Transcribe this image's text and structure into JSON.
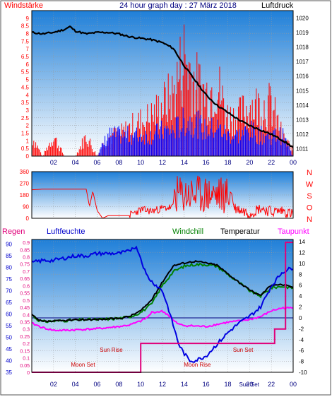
{
  "header": {
    "left_label": "Windstärke",
    "title": "24 hour graph day : 27 März 2018",
    "right_label": "Luftdruck"
  },
  "lower_header": {
    "regen": "Regen",
    "luftfeuchte": "Luftfeuchte",
    "windchill": "Windchill",
    "temperatur": "Temperatur",
    "taupunkt": "Taupunkt"
  },
  "colors": {
    "plot_top": "#1f7fd8",
    "plot_bottom": "#ffffff",
    "wind_red": "#ff0000",
    "wind_blue": "#0000ff",
    "pressure": "#000000",
    "humidity": "#0000e0",
    "temperature": "#000000",
    "windchill": "#008000",
    "dewpoint": "#ff00ff",
    "rain": "#e0007a",
    "grid": "#9a9a9a"
  },
  "chart_data": [
    {
      "type": "line",
      "name": "wind_and_pressure",
      "x_ticks": [
        "02",
        "04",
        "06",
        "08",
        "10",
        "12",
        "14",
        "16",
        "18",
        "20",
        "22",
        "00"
      ],
      "xlim": [
        0,
        24
      ],
      "y_left_ticks": [
        "0",
        "0.5",
        "1",
        "1.5",
        "2",
        "2.5",
        "3",
        "3.5",
        "4",
        "4.5",
        "5",
        "5.5",
        "6",
        "6.5",
        "7",
        "7.5",
        "8",
        "8.5",
        "9"
      ],
      "ylim_left": [
        0,
        9.5
      ],
      "y_right_ticks": [
        "1011",
        "1012",
        "1013",
        "1014",
        "1015",
        "1016",
        "1017",
        "1018",
        "1019",
        "1020"
      ],
      "ylim_right": [
        1010.5,
        1020.5
      ],
      "series": [
        {
          "name": "Luftdruck",
          "axis": "right",
          "x": [
            0,
            1,
            2,
            3,
            3.5,
            4,
            5,
            6,
            7,
            8,
            9,
            10,
            11,
            12,
            13,
            14,
            15,
            16,
            17,
            18,
            19,
            20,
            21,
            22,
            23,
            24
          ],
          "values": [
            1019.0,
            1018.9,
            1019.0,
            1019.2,
            1019.4,
            1019.1,
            1018.9,
            1019.0,
            1019.0,
            1018.9,
            1018.7,
            1018.6,
            1018.5,
            1018.3,
            1017.9,
            1016.7,
            1015.7,
            1014.7,
            1014.0,
            1013.5,
            1013.0,
            1012.6,
            1012.3,
            1012.0,
            1011.6,
            1011.1
          ]
        },
        {
          "name": "Böen",
          "axis": "left",
          "x": [
            0,
            1,
            2,
            3,
            4,
            5,
            6,
            7,
            8,
            9,
            10,
            11,
            12,
            13,
            14,
            15,
            16,
            17,
            18,
            19,
            20,
            21,
            22,
            23,
            24
          ],
          "values": [
            1.8,
            0,
            1.8,
            0,
            0,
            1.8,
            0,
            1.8,
            1.8,
            2.5,
            3.0,
            3.5,
            4.5,
            5.5,
            9.0,
            6.5,
            5.5,
            6.5,
            3.5,
            3.5,
            4.5,
            4.5,
            4.5,
            1.8,
            0.5
          ]
        },
        {
          "name": "Wind",
          "axis": "left",
          "x": [
            0,
            1,
            2,
            3,
            4,
            5,
            6,
            7,
            8,
            9,
            10,
            11,
            12,
            13,
            14,
            15,
            16,
            17,
            18,
            19,
            20,
            21,
            22,
            23,
            24
          ],
          "values": [
            0,
            0,
            0,
            0,
            0,
            0,
            0,
            1.8,
            1.8,
            1.8,
            1.8,
            1.8,
            2.2,
            2.2,
            3.0,
            3.0,
            2.2,
            2.5,
            1.8,
            1.8,
            2.2,
            1.8,
            1.8,
            1.8,
            0
          ]
        }
      ]
    },
    {
      "type": "line",
      "name": "wind_direction",
      "x_ticks": [
        "02",
        "04",
        "06",
        "08",
        "10",
        "12",
        "14",
        "16",
        "18",
        "20",
        "22",
        "00"
      ],
      "xlim": [
        0,
        24
      ],
      "y_ticks": [
        "0",
        "90",
        "180",
        "270",
        "360"
      ],
      "ylim": [
        0,
        360
      ],
      "compass_labels": [
        "N",
        "W",
        "S",
        "O",
        "N"
      ],
      "series": [
        {
          "name": "Windrichtung",
          "x": [
            0,
            1,
            3,
            5,
            5.3,
            5.6,
            6,
            6.5,
            7,
            8,
            9,
            10,
            11,
            12,
            13,
            14,
            15,
            16,
            17,
            18,
            19,
            20,
            21,
            22,
            23,
            24
          ],
          "values": [
            220,
            225,
            225,
            225,
            90,
            210,
            60,
            0,
            20,
            20,
            20,
            60,
            50,
            70,
            80,
            240,
            250,
            240,
            180,
            100,
            70,
            40,
            80,
            50,
            60,
            30
          ]
        }
      ]
    },
    {
      "type": "line",
      "name": "temperature_humidity",
      "x_ticks": [
        "02",
        "04",
        "06",
        "08",
        "10",
        "12",
        "14",
        "16",
        "18",
        "20",
        "22",
        "00"
      ],
      "xlim": [
        0,
        24
      ],
      "y_left_ticks": [
        "35",
        "40",
        "45",
        "50",
        "55",
        "60",
        "65",
        "70",
        "75",
        "80",
        "85",
        "90"
      ],
      "ylim_left": [
        35,
        92
      ],
      "y_mid_ticks": [
        "0",
        "0.05",
        "0.1",
        "0.15",
        "0.2",
        "0.25",
        "0.3",
        "0.35",
        "0.4",
        "0.45",
        "0.5",
        "0.55",
        "0.6",
        "0.65",
        "0.7",
        "0.75",
        "0.8",
        "0.85",
        "0.9"
      ],
      "ylim_mid": [
        0,
        0.92
      ],
      "y_right_ticks": [
        "-10",
        "-8",
        "-6",
        "-4",
        "-2",
        "0",
        "2",
        "4",
        "6",
        "8",
        "10",
        "12",
        "14"
      ],
      "ylim_right": [
        -10,
        14.4
      ],
      "annotations": [
        {
          "text": "Sun Rise",
          "x": 7.3
        },
        {
          "text": "Moon Set",
          "x": 4.7
        },
        {
          "text": "Moon Rise",
          "x": 15.2
        },
        {
          "text": "Sun Set",
          "x": 19.4
        },
        {
          "text": "Sun Set",
          "x": 19.7
        }
      ],
      "series": [
        {
          "name": "Luftfeuchte",
          "axis": "left",
          "x": [
            0,
            1,
            2,
            3,
            4,
            5,
            6,
            7,
            8,
            9,
            9.3,
            9.7,
            10,
            10.5,
            11,
            12,
            12.5,
            13,
            13.5,
            14,
            14.5,
            15,
            16,
            17,
            18,
            19,
            20,
            21,
            22,
            23,
            24
          ],
          "values": [
            82,
            83,
            83,
            84,
            85,
            85,
            86,
            86,
            86,
            87,
            89,
            88,
            84,
            77,
            74,
            70,
            63,
            55,
            47,
            43,
            40,
            40,
            42,
            47,
            52,
            56,
            59,
            63,
            72,
            78,
            80
          ]
        },
        {
          "name": "Temperatur",
          "axis": "right",
          "x": [
            0,
            0.5,
            1,
            2,
            3,
            4,
            5,
            6,
            7,
            8,
            9,
            10,
            11,
            12,
            13,
            14,
            15,
            16,
            17,
            18,
            19,
            20,
            21,
            22,
            23,
            24
          ],
          "values": [
            0.6,
            -0.3,
            -0.7,
            -0.6,
            -0.5,
            -0.4,
            -0.3,
            -0.3,
            -0.2,
            -0.1,
            0.3,
            1.3,
            3.3,
            6.6,
            9.6,
            10.1,
            10.4,
            10.1,
            9.7,
            8.1,
            6.6,
            5.1,
            4.1,
            6.1,
            6.1,
            5.6
          ]
        },
        {
          "name": "Windchill",
          "axis": "right",
          "x": [
            0,
            0.5,
            1,
            2,
            3,
            4,
            5,
            6,
            7,
            8,
            9,
            10,
            11,
            12,
            13,
            14,
            15,
            16,
            17,
            18,
            19,
            20,
            21,
            22,
            23,
            24
          ],
          "values": [
            0.6,
            -0.3,
            -0.7,
            -0.6,
            -0.5,
            -0.4,
            -0.3,
            -0.3,
            -0.2,
            -0.1,
            0.2,
            1.0,
            2.5,
            6.0,
            8.5,
            9.5,
            9.8,
            9.8,
            9.5,
            8.0,
            6.5,
            5.0,
            4.0,
            5.5,
            5.8,
            5.5
          ]
        },
        {
          "name": "Taupunkt",
          "axis": "right",
          "x": [
            0,
            1,
            2,
            3,
            4,
            5,
            6,
            7,
            8,
            9,
            10,
            10.7,
            11,
            12,
            12.5,
            13,
            13.5,
            14,
            15,
            16,
            17,
            18,
            19,
            20,
            21,
            22,
            23,
            24
          ],
          "values": [
            -1.0,
            -1.8,
            -2.3,
            -2.3,
            -2.2,
            -2.1,
            -2.0,
            -1.8,
            -1.6,
            -1.3,
            -0.6,
            0.2,
            1.0,
            1.2,
            0.6,
            -0.5,
            -1.2,
            -1.4,
            -1.5,
            -1.6,
            -1.2,
            -0.8,
            -0.6,
            -0.3,
            0.2,
            1.3,
            1.8,
            1.8
          ]
        },
        {
          "name": "Regen",
          "axis": "mid",
          "x": [
            0,
            10,
            10,
            22.3,
            22.3,
            23.3,
            23.3,
            24
          ],
          "values": [
            0,
            0,
            0.2,
            0.2,
            0.3,
            0.3,
            0.9,
            0.9
          ]
        }
      ]
    }
  ]
}
